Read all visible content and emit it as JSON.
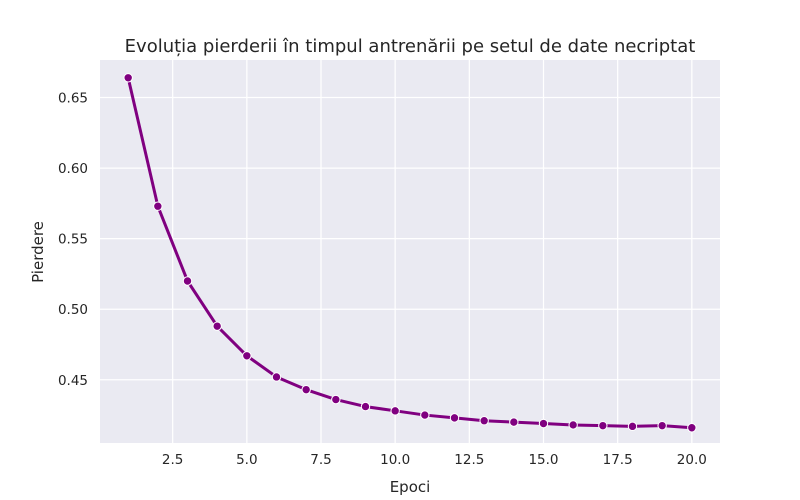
{
  "chart_data": {
    "type": "line",
    "title": "Evoluția pierderii în timpul antrenării pe setul de date necriptat",
    "xlabel": "Epoci",
    "ylabel": "Pierdere",
    "x_ticks": [
      "2.5",
      "5.0",
      "7.5",
      "10.0",
      "12.5",
      "15.0",
      "17.5",
      "20.0"
    ],
    "y_ticks": [
      "0.45",
      "0.50",
      "0.55",
      "0.60",
      "0.65"
    ],
    "xlim": [
      0.05,
      20.95
    ],
    "ylim": [
      0.4052,
      0.6766
    ],
    "grid": true,
    "series": [
      {
        "color": "#800080",
        "marker": "circle",
        "x": [
          1,
          2,
          3,
          4,
          5,
          6,
          7,
          8,
          9,
          10,
          11,
          12,
          13,
          14,
          15,
          16,
          17,
          18,
          19,
          20
        ],
        "values": [
          0.664,
          0.573,
          0.52,
          0.488,
          0.467,
          0.452,
          0.443,
          0.436,
          0.431,
          0.428,
          0.425,
          0.423,
          0.421,
          0.42,
          0.419,
          0.418,
          0.4175,
          0.417,
          0.4175,
          0.416
        ]
      }
    ],
    "colors": {
      "plot_bg": "#eaeaf2",
      "grid": "#ffffff",
      "text": "#262626"
    }
  }
}
